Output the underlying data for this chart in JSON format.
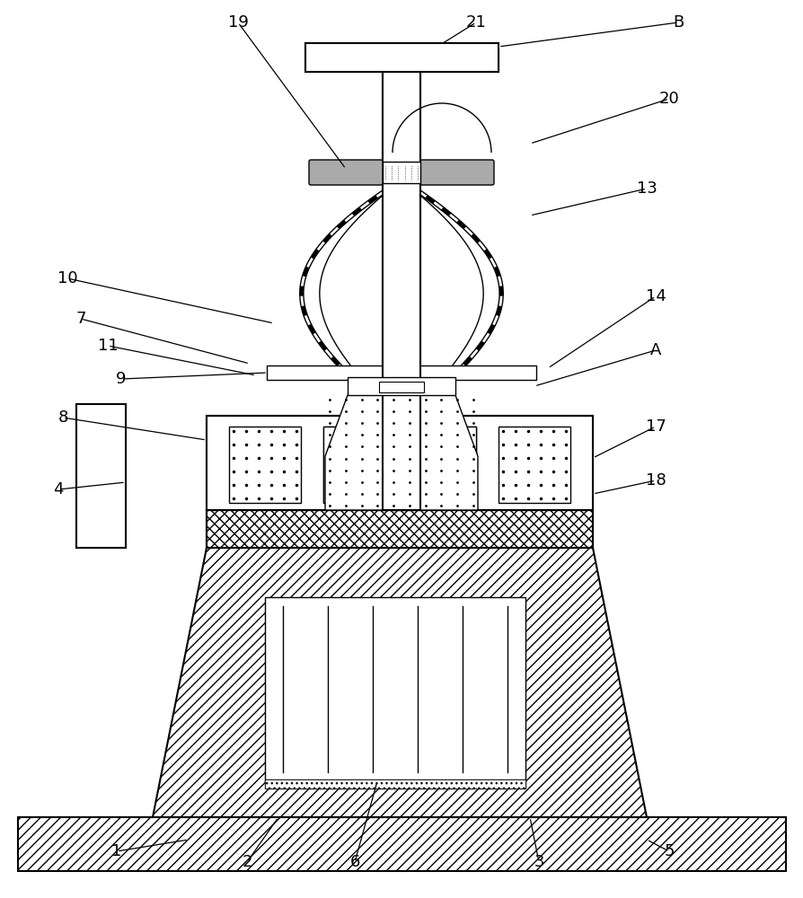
{
  "bg_color": "#ffffff",
  "line_color": "#000000",
  "fig_width": 8.95,
  "fig_height": 10.0,
  "lw": 1.0,
  "lw_thick": 1.5
}
